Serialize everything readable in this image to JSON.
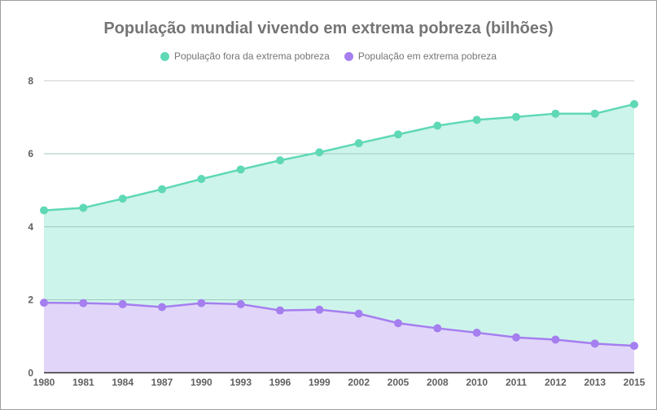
{
  "chart_data": {
    "type": "area",
    "stacked": true,
    "title": "População mundial vivendo em extrema pobreza (bilhões)",
    "xlabel": "",
    "ylabel": "",
    "categories": [
      "1980",
      "1981",
      "1984",
      "1987",
      "1990",
      "1993",
      "1996",
      "1999",
      "2002",
      "2005",
      "2008",
      "2010",
      "2011",
      "2012",
      "2013",
      "2015"
    ],
    "yticks": [
      "0",
      "2",
      "4",
      "6",
      "8"
    ],
    "ylim": [
      0,
      8
    ],
    "grid": true,
    "legend_position": "top",
    "series": [
      {
        "name": "População fora da extrema pobreza",
        "color": "#5fd8b6",
        "fill": "#cdf4ea",
        "values": [
          2.53,
          2.61,
          2.89,
          3.23,
          3.4,
          3.69,
          4.11,
          4.31,
          4.67,
          5.17,
          5.55,
          5.83,
          6.04,
          6.19,
          6.3,
          6.62
        ]
      },
      {
        "name": "População em extrema pobreza",
        "color": "#a57ef0",
        "fill": "#e1d6f9",
        "values": [
          1.92,
          1.91,
          1.88,
          1.8,
          1.91,
          1.88,
          1.71,
          1.73,
          1.62,
          1.36,
          1.22,
          1.1,
          0.97,
          0.91,
          0.8,
          0.74
        ]
      }
    ]
  }
}
